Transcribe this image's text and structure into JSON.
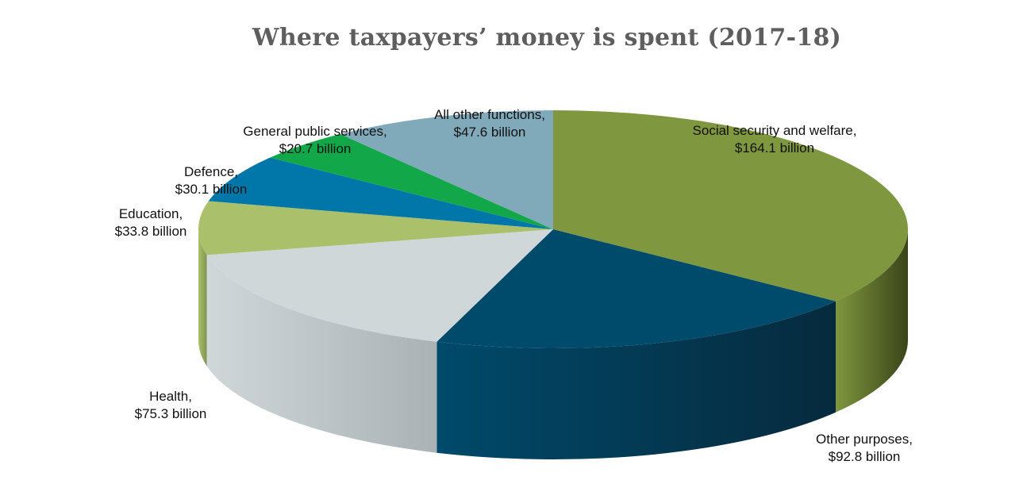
{
  "chart_data": {
    "type": "pie",
    "title": "Where taxpayers’ money is spent (2017-18)",
    "slices": [
      {
        "name": "Social security and welfare,",
        "value": 164.1,
        "label": "$164.1 billion",
        "color": "#7f973f",
        "side_color": "#3a4418"
      },
      {
        "name": "Other purposes,",
        "value": 92.8,
        "label": "$92.8 billion",
        "color": "#004a6b",
        "side_color": "#062a3d"
      },
      {
        "name": "Health,",
        "value": 75.3,
        "label": "$75.3 billion",
        "color": "#cfd7d9",
        "side_color": "#a9b2b4"
      },
      {
        "name": "Education,",
        "value": 33.8,
        "label": "$33.8 billion",
        "color": "#aac06a",
        "side_color": "#7f9550"
      },
      {
        "name": "Defence,",
        "value": 30.1,
        "label": "$30.1 billion",
        "color": "#0077a8",
        "side_color": "#005478"
      },
      {
        "name": "General public services,",
        "value": 20.7,
        "label": "$20.7 billion",
        "color": "#12a84a",
        "side_color": "#0c7a35"
      },
      {
        "name": "All other functions,",
        "value": 47.6,
        "label": "$47.6 billion",
        "color": "#80a9ba",
        "side_color": "#5f8190"
      }
    ],
    "unit": "billion"
  }
}
